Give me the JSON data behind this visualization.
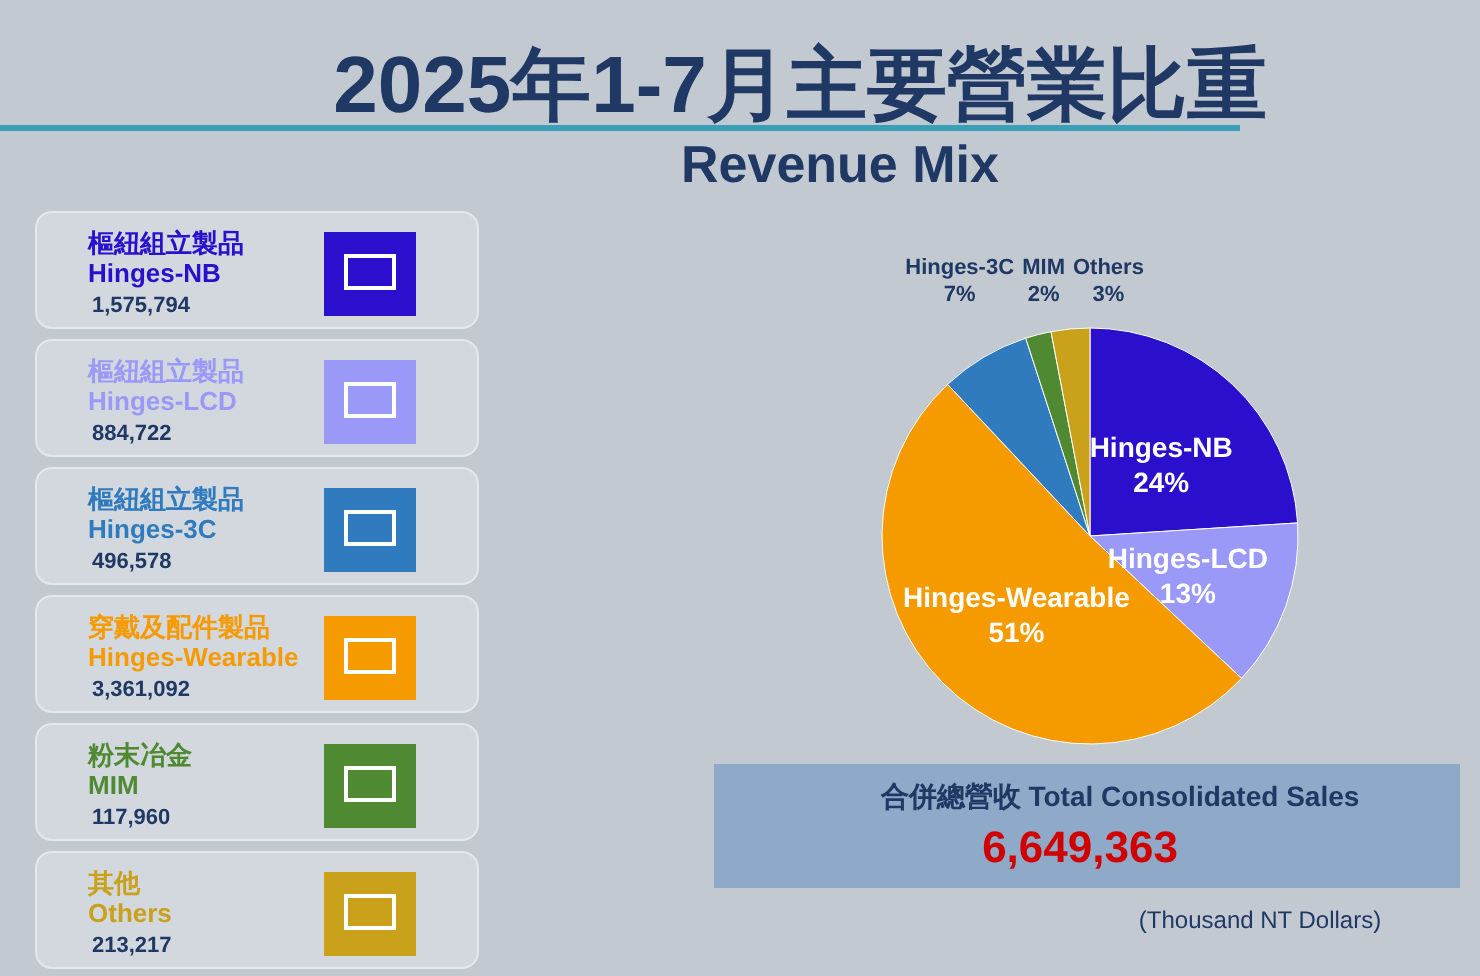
{
  "chart_data": {
    "type": "pie",
    "title": "2025年1-7月主要營業比重",
    "subtitle": "Revenue Mix",
    "categories": [
      "Hinges-NB",
      "Hinges-LCD",
      "Hinges-Wearable",
      "Hinges-3C",
      "MIM",
      "Others"
    ],
    "values": [
      24,
      13,
      51,
      7,
      2,
      3
    ],
    "value_labels": [
      "24%",
      "13%",
      "51%",
      "7%",
      "2%",
      "3%"
    ],
    "colors": [
      "#2a10cc",
      "#9b99f7",
      "#f59b00",
      "#2f7bbd",
      "#4f8a32",
      "#c9a11a"
    ],
    "annotations": [
      "樞紐組立製品",
      "Hinges-NB",
      "1,575,794",
      "樞紐組立製品",
      "Hinges-LCD",
      "884,722",
      "樞紐組立製品",
      "Hinges-3C",
      "496,578",
      "穿戴及配件製品",
      "Hinges-Wearable",
      "3,361,092",
      "粉末冶金",
      "MIM",
      "117,960",
      "其他",
      "Others",
      "213,217",
      "合併總營收 Total Consolidated Sales",
      "6,649,363",
      "(Thousand NT Dollars)"
    ]
  }
}
